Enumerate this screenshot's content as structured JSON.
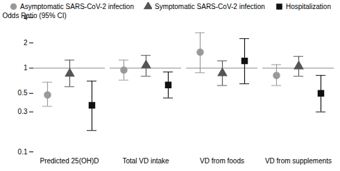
{
  "chart_data": {
    "type": "errorbar",
    "ylabel": "Odds Ratio (95% CI)",
    "categories": [
      "Predicted 25(OH)D",
      "Total VD intake",
      "VD from foods",
      "VD from supplements"
    ],
    "log": "y",
    "ylim": [
      0.1,
      4
    ],
    "yticks": [
      0.1,
      0.3,
      0.5,
      1,
      2,
      4
    ],
    "reference_line": 1,
    "grid": false,
    "legend": "top",
    "series": [
      {
        "name": "Asymptomatic SARS-CoV-2 infection",
        "color": "#999999",
        "marker": "circle",
        "values": [
          0.48,
          0.95,
          1.55,
          0.82
        ],
        "y_lo": [
          0.35,
          0.72,
          0.88,
          0.62
        ],
        "y_hi": [
          0.68,
          1.25,
          2.65,
          1.1
        ]
      },
      {
        "name": "Symptomatic SARS-CoV-2 infection",
        "color": "#555555",
        "marker": "triangle",
        "values": [
          0.86,
          1.08,
          0.87,
          1.05
        ],
        "y_lo": [
          0.6,
          0.8,
          0.62,
          0.8
        ],
        "y_hi": [
          1.25,
          1.42,
          1.22,
          1.38
        ]
      },
      {
        "name": "Hospitalization",
        "color": "#111111",
        "marker": "square",
        "values": [
          0.36,
          0.63,
          1.22,
          0.5
        ],
        "y_lo": [
          0.18,
          0.44,
          0.65,
          0.3
        ],
        "y_hi": [
          0.7,
          0.9,
          2.25,
          0.82
        ]
      }
    ]
  }
}
